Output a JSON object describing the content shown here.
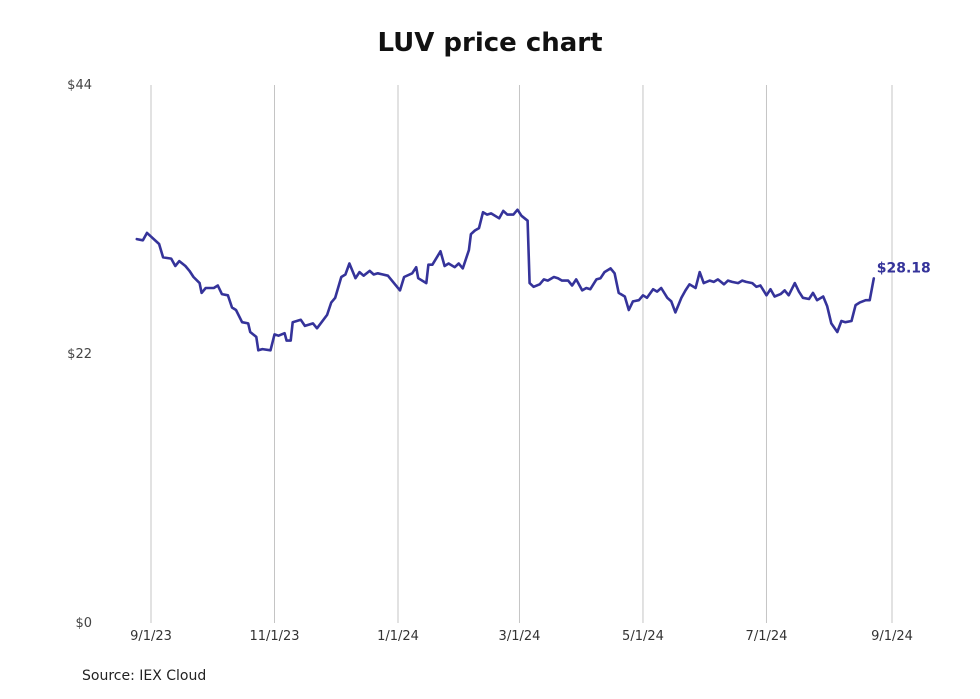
{
  "chart_data": {
    "type": "line",
    "title": "LUV price chart",
    "source": "Source: IEX Cloud",
    "line_color": "#35339a",
    "grid_color": "#c4c4c4",
    "grid": "vertical",
    "ylim": [
      0,
      44
    ],
    "y_ticks": [
      {
        "value": 0,
        "label": "$0"
      },
      {
        "value": 22,
        "label": "$22"
      },
      {
        "value": 44,
        "label": "$44"
      }
    ],
    "xlim": [
      "2023-08-24",
      "2024-09-01"
    ],
    "x_ticks": [
      {
        "date": "2023-09-01",
        "label": "9/1/23"
      },
      {
        "date": "2023-11-01",
        "label": "11/1/23"
      },
      {
        "date": "2024-01-01",
        "label": "1/1/24"
      },
      {
        "date": "2024-03-01",
        "label": "3/1/24"
      },
      {
        "date": "2024-05-01",
        "label": "5/1/24"
      },
      {
        "date": "2024-07-01",
        "label": "7/1/24"
      },
      {
        "date": "2024-09-01",
        "label": "9/1/24"
      }
    ],
    "last_value_label": "$28.18",
    "series": [
      {
        "points": [
          [
            "2023-08-25",
            31.4
          ],
          [
            "2023-08-28",
            31.3
          ],
          [
            "2023-08-30",
            31.9
          ],
          [
            "2023-09-01",
            31.6
          ],
          [
            "2023-09-05",
            31.0
          ],
          [
            "2023-09-07",
            29.9
          ],
          [
            "2023-09-11",
            29.8
          ],
          [
            "2023-09-13",
            29.2
          ],
          [
            "2023-09-15",
            29.6
          ],
          [
            "2023-09-18",
            29.2
          ],
          [
            "2023-09-20",
            28.8
          ],
          [
            "2023-09-22",
            28.3
          ],
          [
            "2023-09-25",
            27.8
          ],
          [
            "2023-09-26",
            27.0
          ],
          [
            "2023-09-28",
            27.4
          ],
          [
            "2023-10-02",
            27.4
          ],
          [
            "2023-10-04",
            27.6
          ],
          [
            "2023-10-06",
            26.9
          ],
          [
            "2023-10-09",
            26.8
          ],
          [
            "2023-10-11",
            25.8
          ],
          [
            "2023-10-13",
            25.6
          ],
          [
            "2023-10-16",
            24.6
          ],
          [
            "2023-10-19",
            24.5
          ],
          [
            "2023-10-20",
            23.8
          ],
          [
            "2023-10-23",
            23.4
          ],
          [
            "2023-10-24",
            22.3
          ],
          [
            "2023-10-26",
            22.4
          ],
          [
            "2023-10-30",
            22.3
          ],
          [
            "2023-11-01",
            23.6
          ],
          [
            "2023-11-03",
            23.5
          ],
          [
            "2023-11-06",
            23.7
          ],
          [
            "2023-11-07",
            23.1
          ],
          [
            "2023-11-09",
            23.1
          ],
          [
            "2023-11-10",
            24.6
          ],
          [
            "2023-11-14",
            24.8
          ],
          [
            "2023-11-16",
            24.3
          ],
          [
            "2023-11-20",
            24.5
          ],
          [
            "2023-11-22",
            24.1
          ],
          [
            "2023-11-27",
            25.2
          ],
          [
            "2023-11-29",
            26.2
          ],
          [
            "2023-12-01",
            26.6
          ],
          [
            "2023-12-04",
            28.3
          ],
          [
            "2023-12-06",
            28.5
          ],
          [
            "2023-12-08",
            29.4
          ],
          [
            "2023-12-11",
            28.2
          ],
          [
            "2023-12-13",
            28.7
          ],
          [
            "2023-12-15",
            28.4
          ],
          [
            "2023-12-18",
            28.8
          ],
          [
            "2023-12-20",
            28.5
          ],
          [
            "2023-12-22",
            28.6
          ],
          [
            "2023-12-27",
            28.4
          ],
          [
            "2023-12-29",
            28.0
          ],
          [
            "2024-01-02",
            27.2
          ],
          [
            "2024-01-04",
            28.3
          ],
          [
            "2024-01-08",
            28.6
          ],
          [
            "2024-01-10",
            29.1
          ],
          [
            "2024-01-11",
            28.2
          ],
          [
            "2024-01-15",
            27.8
          ],
          [
            "2024-01-16",
            29.3
          ],
          [
            "2024-01-18",
            29.3
          ],
          [
            "2024-01-22",
            30.4
          ],
          [
            "2024-01-24",
            29.2
          ],
          [
            "2024-01-26",
            29.4
          ],
          [
            "2024-01-29",
            29.1
          ],
          [
            "2024-01-31",
            29.4
          ],
          [
            "2024-02-02",
            29.0
          ],
          [
            "2024-02-05",
            30.5
          ],
          [
            "2024-02-06",
            31.8
          ],
          [
            "2024-02-08",
            32.1
          ],
          [
            "2024-02-10",
            32.3
          ],
          [
            "2024-02-12",
            33.6
          ],
          [
            "2024-02-14",
            33.4
          ],
          [
            "2024-02-16",
            33.5
          ],
          [
            "2024-02-20",
            33.1
          ],
          [
            "2024-02-22",
            33.7
          ],
          [
            "2024-02-24",
            33.4
          ],
          [
            "2024-02-27",
            33.4
          ],
          [
            "2024-02-29",
            33.8
          ],
          [
            "2024-03-02",
            33.3
          ],
          [
            "2024-03-05",
            32.9
          ],
          [
            "2024-03-06",
            27.8
          ],
          [
            "2024-03-08",
            27.5
          ],
          [
            "2024-03-11",
            27.7
          ],
          [
            "2024-03-13",
            28.1
          ],
          [
            "2024-03-15",
            28.0
          ],
          [
            "2024-03-18",
            28.3
          ],
          [
            "2024-03-20",
            28.2
          ],
          [
            "2024-03-22",
            28.0
          ],
          [
            "2024-03-25",
            28.0
          ],
          [
            "2024-03-27",
            27.6
          ],
          [
            "2024-03-29",
            28.1
          ],
          [
            "2024-04-01",
            27.2
          ],
          [
            "2024-04-03",
            27.4
          ],
          [
            "2024-04-05",
            27.3
          ],
          [
            "2024-04-08",
            28.1
          ],
          [
            "2024-04-10",
            28.2
          ],
          [
            "2024-04-12",
            28.7
          ],
          [
            "2024-04-15",
            29.0
          ],
          [
            "2024-04-17",
            28.6
          ],
          [
            "2024-04-19",
            27.0
          ],
          [
            "2024-04-22",
            26.7
          ],
          [
            "2024-04-24",
            25.6
          ],
          [
            "2024-04-26",
            26.3
          ],
          [
            "2024-04-29",
            26.4
          ],
          [
            "2024-05-01",
            26.8
          ],
          [
            "2024-05-03",
            26.6
          ],
          [
            "2024-05-06",
            27.3
          ],
          [
            "2024-05-08",
            27.1
          ],
          [
            "2024-05-10",
            27.4
          ],
          [
            "2024-05-13",
            26.6
          ],
          [
            "2024-05-15",
            26.3
          ],
          [
            "2024-05-17",
            25.4
          ],
          [
            "2024-05-20",
            26.6
          ],
          [
            "2024-05-22",
            27.2
          ],
          [
            "2024-05-24",
            27.7
          ],
          [
            "2024-05-27",
            27.4
          ],
          [
            "2024-05-29",
            28.7
          ],
          [
            "2024-05-31",
            27.8
          ],
          [
            "2024-06-03",
            28.0
          ],
          [
            "2024-06-05",
            27.9
          ],
          [
            "2024-06-07",
            28.1
          ],
          [
            "2024-06-10",
            27.7
          ],
          [
            "2024-06-12",
            28.0
          ],
          [
            "2024-06-14",
            27.9
          ],
          [
            "2024-06-17",
            27.8
          ],
          [
            "2024-06-19",
            28.0
          ],
          [
            "2024-06-21",
            27.9
          ],
          [
            "2024-06-24",
            27.8
          ],
          [
            "2024-06-26",
            27.5
          ],
          [
            "2024-06-28",
            27.6
          ],
          [
            "2024-07-01",
            26.8
          ],
          [
            "2024-07-03",
            27.3
          ],
          [
            "2024-07-05",
            26.7
          ],
          [
            "2024-07-08",
            26.9
          ],
          [
            "2024-07-10",
            27.2
          ],
          [
            "2024-07-12",
            26.8
          ],
          [
            "2024-07-15",
            27.8
          ],
          [
            "2024-07-17",
            27.1
          ],
          [
            "2024-07-19",
            26.6
          ],
          [
            "2024-07-22",
            26.5
          ],
          [
            "2024-07-24",
            27.0
          ],
          [
            "2024-07-26",
            26.4
          ],
          [
            "2024-07-29",
            26.7
          ],
          [
            "2024-07-31",
            25.9
          ],
          [
            "2024-08-02",
            24.5
          ],
          [
            "2024-08-05",
            23.8
          ],
          [
            "2024-08-07",
            24.7
          ],
          [
            "2024-08-09",
            24.6
          ],
          [
            "2024-08-12",
            24.7
          ],
          [
            "2024-08-14",
            26.0
          ],
          [
            "2024-08-16",
            26.2
          ],
          [
            "2024-08-19",
            26.4
          ],
          [
            "2024-08-21",
            26.4
          ],
          [
            "2024-08-23",
            28.18
          ]
        ]
      }
    ]
  }
}
